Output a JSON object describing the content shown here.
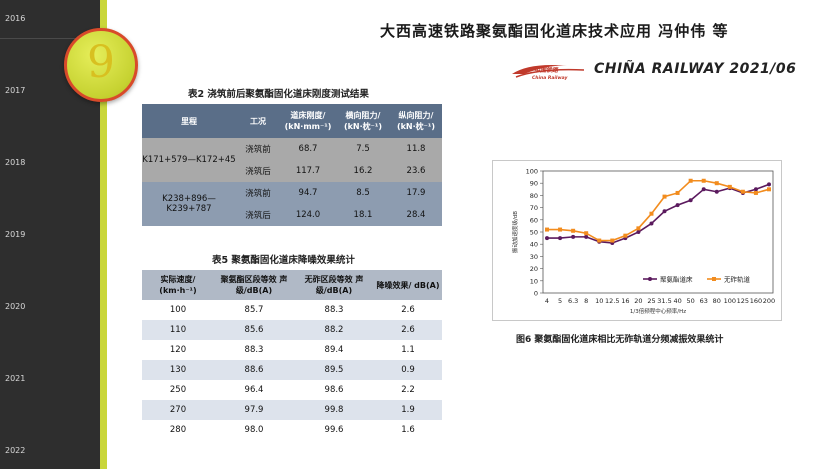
{
  "timeline": {
    "years": [
      "2016",
      "2017",
      "2018",
      "2019",
      "2020",
      "2021",
      "2022"
    ]
  },
  "page_badge": "9",
  "header": {
    "title": "大西高速铁路聚氨酯固化道床技术应用 冯仲伟 等",
    "logo_text": "中国铁路 China Railway",
    "brand": "CHIÑA RAILWAY  2021/06"
  },
  "table2": {
    "caption": "表2   浇筑前后聚氨酯固化道床刚度测试结果",
    "headers": [
      "里程",
      "工况",
      "道床刚度/ (kN·mm⁻¹)",
      "横向阻力/ (kN·枕⁻¹)",
      "纵向阻力/ (kN·枕⁻¹)"
    ],
    "groups": [
      {
        "mileage": "K171+579—K172+45",
        "rows": [
          {
            "cond": "浇筑前",
            "stiff": "68.7",
            "lat": "7.5",
            "lon": "11.8"
          },
          {
            "cond": "浇筑后",
            "stiff": "117.7",
            "lat": "16.2",
            "lon": "23.6"
          }
        ]
      },
      {
        "mileage": "K238+896—K239+787",
        "rows": [
          {
            "cond": "浇筑前",
            "stiff": "94.7",
            "lat": "8.5",
            "lon": "17.9"
          },
          {
            "cond": "浇筑后",
            "stiff": "124.0",
            "lat": "18.1",
            "lon": "28.4"
          }
        ]
      }
    ]
  },
  "table5": {
    "caption": "表5   聚氨酯固化道床降噪效果统计",
    "headers": [
      "实际速度/ (km·h⁻¹)",
      "聚氨酯区段等效 声级/dB(A)",
      "无砟区段等效 声级/dB(A)",
      "降噪效果/ dB(A)"
    ],
    "rows": [
      [
        "100",
        "85.7",
        "88.3",
        "2.6"
      ],
      [
        "110",
        "85.6",
        "88.2",
        "2.6"
      ],
      [
        "120",
        "88.3",
        "89.4",
        "1.1"
      ],
      [
        "130",
        "88.6",
        "89.5",
        "0.9"
      ],
      [
        "250",
        "96.4",
        "98.6",
        "2.2"
      ],
      [
        "270",
        "97.9",
        "99.8",
        "1.9"
      ],
      [
        "280",
        "98.0",
        "99.6",
        "1.6"
      ]
    ]
  },
  "figure6": {
    "caption": "图6   聚氨酯固化道床相比无砟轨道分频减振效果统计"
  },
  "chart_data": {
    "type": "line",
    "ylabel": "振动加速度级/dB",
    "xlabel": "1/3倍频程中心频率/Hz",
    "ylim": [
      0,
      100
    ],
    "yticks": [
      0,
      10,
      20,
      30,
      40,
      50,
      60,
      70,
      80,
      90,
      100
    ],
    "categories": [
      "4",
      "5",
      "6.3",
      "8",
      "10",
      "12.5",
      "16",
      "20",
      "25",
      "31.5",
      "40",
      "50",
      "63",
      "80",
      "100",
      "125",
      "160",
      "200"
    ],
    "series": [
      {
        "name": "聚氨酯道床",
        "color": "#5b1a5e",
        "marker": "circle",
        "values": [
          45,
          45,
          46,
          46,
          42,
          41,
          45,
          50,
          57,
          67,
          72,
          76,
          85,
          83,
          86,
          82,
          85,
          89
        ]
      },
      {
        "name": "无砟轨道",
        "color": "#f28c1e",
        "marker": "square",
        "values": [
          52,
          52,
          51,
          49,
          43,
          43,
          47,
          53,
          65,
          79,
          82,
          92,
          92,
          90,
          87,
          83,
          82,
          85
        ]
      }
    ],
    "legend": "bottom-right",
    "grid": false
  }
}
